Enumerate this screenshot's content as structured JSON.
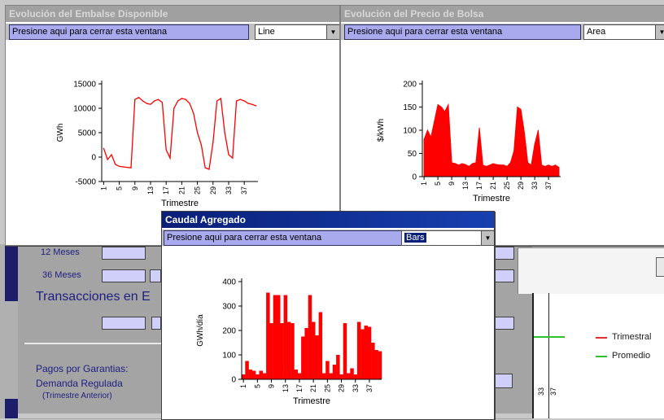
{
  "windows": {
    "embalse": {
      "title": "Evolución del Embalse Disponible",
      "close_text": "Presione aqui para cerrar esta ventana",
      "chart_type_value": "Line"
    },
    "precio": {
      "title": "Evolución del Precio de Bolsa",
      "close_text": "Presione aqui para cerrar esta ventana",
      "chart_type_value": "Area"
    },
    "caudal": {
      "title": "Caudal Agregado",
      "close_text": "Presione aqui para cerrar esta ventana",
      "chart_type_value": "Bars"
    }
  },
  "background": {
    "row_12_label": "12 Meses",
    "row_36_label": "36 Meses",
    "transacciones_label": "Transacciones en E",
    "pagos_label": "Pagos por Garantias:",
    "demanda_label": "Demanda Regulada",
    "trimestre_anterior_label": "(Trimestre Anterior)",
    "legend": [
      {
        "label": "Trimestral",
        "color": "#e03030"
      },
      {
        "label": "Promedio",
        "color": "#30c030"
      }
    ],
    "partial_ticks": [
      "33",
      "37"
    ]
  },
  "chart_data": [
    {
      "type": "line",
      "title": "",
      "xlabel": "Trimestre",
      "ylabel": "GWh",
      "color": "#ff0000",
      "ylim": [
        -5000,
        15000
      ],
      "yticks": [
        "15000",
        "10000",
        "5000",
        "0",
        "-5000"
      ],
      "xticks": [
        "1",
        "5",
        "9",
        "13",
        "17",
        "21",
        "25",
        "29",
        "33",
        "37"
      ],
      "x": [
        1,
        2,
        3,
        4,
        5,
        6,
        7,
        8,
        9,
        10,
        11,
        12,
        13,
        14,
        15,
        16,
        17,
        18,
        19,
        20,
        21,
        22,
        23,
        24,
        25,
        26,
        27,
        28,
        29,
        30,
        31,
        32,
        33,
        34,
        35,
        36,
        37,
        38,
        39,
        40
      ],
      "values": [
        1800,
        -500,
        500,
        -1500,
        -1900,
        -2000,
        -2100,
        -2200,
        11800,
        12200,
        11500,
        11000,
        10800,
        11500,
        11800,
        11200,
        1500,
        -200,
        10000,
        11500,
        12000,
        11800,
        11000,
        9000,
        5000,
        2500,
        -2200,
        -2500,
        3000,
        11500,
        12000,
        5000,
        500,
        -200,
        11500,
        11800,
        11500,
        11000,
        10800,
        10500
      ]
    },
    {
      "type": "area",
      "title": "",
      "xlabel": "Trimestre",
      "ylabel": "$/kWh",
      "color": "#ff0000",
      "ylim": [
        0,
        200
      ],
      "yticks": [
        "200",
        "150",
        "100",
        "50",
        "0"
      ],
      "xticks": [
        "1",
        "5",
        "9",
        "13",
        "17",
        "21",
        "25",
        "29",
        "33",
        "37"
      ],
      "x": [
        1,
        2,
        3,
        4,
        5,
        6,
        7,
        8,
        9,
        10,
        11,
        12,
        13,
        14,
        15,
        16,
        17,
        18,
        19,
        20,
        21,
        22,
        23,
        24,
        25,
        26,
        27,
        28,
        29,
        30,
        31,
        32,
        33,
        34,
        35,
        36,
        37,
        38,
        39,
        40
      ],
      "values": [
        80,
        100,
        85,
        120,
        155,
        150,
        140,
        155,
        30,
        28,
        25,
        28,
        26,
        22,
        28,
        30,
        105,
        25,
        22,
        25,
        28,
        26,
        25,
        25,
        22,
        30,
        55,
        150,
        145,
        95,
        30,
        25,
        70,
        100,
        25,
        22,
        25,
        22,
        25,
        20
      ]
    },
    {
      "type": "bar",
      "title": "",
      "xlabel": "Trimestre",
      "ylabel": "GWh/día",
      "color": "#ff0000",
      "ylim": [
        0,
        400
      ],
      "yticks": [
        "400",
        "300",
        "200",
        "100",
        "0"
      ],
      "xticks": [
        "1",
        "5",
        "9",
        "13",
        "17",
        "21",
        "25",
        "29",
        "33",
        "37"
      ],
      "x": [
        1,
        2,
        3,
        4,
        5,
        6,
        7,
        8,
        9,
        10,
        11,
        12,
        13,
        14,
        15,
        16,
        17,
        18,
        19,
        20,
        21,
        22,
        23,
        24,
        25,
        26,
        27,
        28,
        29,
        30,
        31,
        32,
        33,
        34,
        35,
        36,
        37,
        38,
        39,
        40
      ],
      "values": [
        20,
        75,
        40,
        35,
        20,
        35,
        25,
        355,
        230,
        345,
        345,
        230,
        345,
        235,
        230,
        40,
        25,
        175,
        210,
        345,
        235,
        180,
        275,
        25,
        75,
        25,
        60,
        100,
        20,
        230,
        25,
        45,
        20,
        235,
        205,
        220,
        215,
        150,
        120,
        115
      ]
    }
  ]
}
